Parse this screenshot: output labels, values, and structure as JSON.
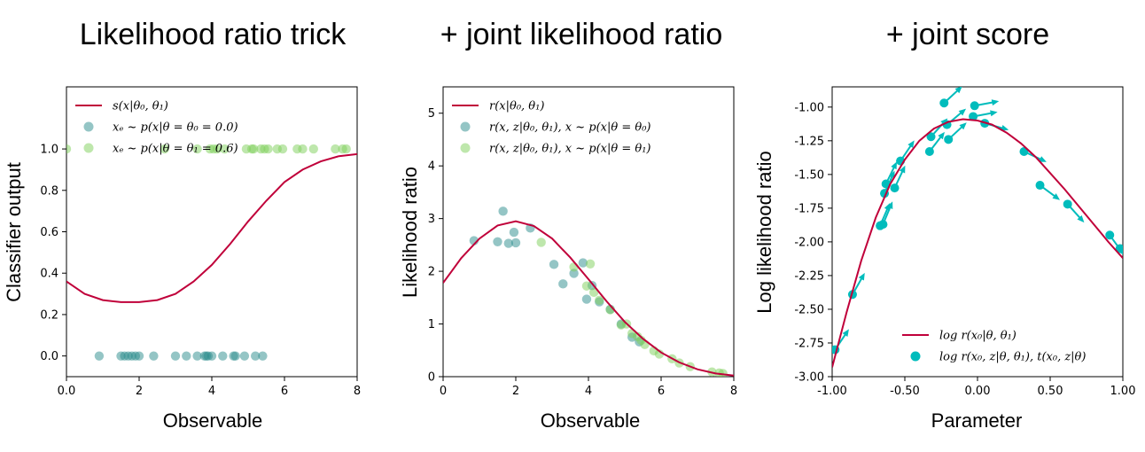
{
  "colors": {
    "curve": "#c0003a",
    "teal": "#2a8c8c",
    "green": "#7ed05a",
    "cyan": "#00bcbc"
  },
  "chart_data": [
    {
      "id": "p1",
      "type": "scatter",
      "title": "Likelihood ratio trick",
      "xlabel": "Observable",
      "ylabel": "Classifier output",
      "xlim": [
        0,
        8
      ],
      "ylim": [
        -0.1,
        1.3
      ],
      "xticks": [
        0,
        2,
        4,
        6,
        8
      ],
      "yticks": [
        0.0,
        0.2,
        0.4,
        0.6,
        0.8,
        1.0
      ],
      "grid": false,
      "legend_position": "top-left",
      "legend": [
        "s(x|θ₀, θ₁)",
        "xₑ ~ p(x|θ = θ₀ = 0.0)",
        "xₑ ~ p(x|θ = θ₁ = 0.6)"
      ],
      "curve": {
        "x": [
          0,
          0.5,
          1,
          1.5,
          2,
          2.5,
          3,
          3.5,
          4,
          4.5,
          5,
          5.5,
          6,
          6.5,
          7,
          7.5,
          8
        ],
        "y": [
          0.36,
          0.3,
          0.27,
          0.26,
          0.26,
          0.27,
          0.3,
          0.36,
          0.44,
          0.54,
          0.65,
          0.75,
          0.84,
          0.9,
          0.94,
          0.965,
          0.975
        ]
      },
      "series": [
        {
          "color": "teal",
          "x": [
            0.9,
            1.5,
            1.6,
            1.7,
            1.8,
            1.9,
            2.0,
            2.4,
            3.0,
            3.3,
            3.6,
            3.8,
            3.85,
            3.9,
            4.0,
            4.3,
            4.6,
            4.65,
            4.9,
            5.2,
            5.4
          ],
          "y": [
            0,
            0,
            0,
            0,
            0,
            0,
            0,
            0,
            0,
            0,
            0,
            0,
            0,
            0,
            0,
            0,
            0,
            0,
            0,
            0,
            0
          ]
        },
        {
          "color": "green",
          "x": [
            0.0,
            2.7,
            3.6,
            3.95,
            4.05,
            4.15,
            4.35,
            4.95,
            5.1,
            5.15,
            5.35,
            5.45,
            5.55,
            5.8,
            5.95,
            6.35,
            6.5,
            6.8,
            7.4,
            7.6,
            7.7
          ],
          "y": [
            1,
            1,
            1,
            1,
            1,
            1,
            1,
            1,
            1,
            1,
            1,
            1,
            1,
            1,
            1,
            1,
            1,
            1,
            1,
            1,
            1
          ]
        }
      ]
    },
    {
      "id": "p2",
      "type": "scatter",
      "title": "+ joint likelihood ratio",
      "xlabel": "Observable",
      "ylabel": "Likelihood ratio",
      "xlim": [
        0,
        8
      ],
      "ylim": [
        0,
        5.5
      ],
      "xticks": [
        0,
        2,
        4,
        6,
        8
      ],
      "yticks": [
        0,
        1,
        2,
        3,
        4,
        5
      ],
      "grid": false,
      "legend_position": "top-left",
      "legend": [
        "r(x|θ₀, θ₁)",
        "r(x, z|θ₀, θ₁), x ~ p(x|θ = θ₀)",
        "r(x, z|θ₀, θ₁), x ~ p(x|θ = θ₁)"
      ],
      "curve": {
        "x": [
          0,
          0.5,
          1,
          1.5,
          2,
          2.5,
          3,
          3.5,
          4,
          4.5,
          5,
          5.5,
          6,
          6.5,
          7,
          7.5,
          8
        ],
        "y": [
          1.78,
          2.25,
          2.62,
          2.87,
          2.95,
          2.86,
          2.62,
          2.26,
          1.85,
          1.43,
          1.04,
          0.72,
          0.46,
          0.27,
          0.14,
          0.06,
          0.02
        ]
      },
      "series": [
        {
          "color": "teal",
          "x": [
            0.85,
            1.5,
            1.65,
            1.8,
            1.95,
            2.0,
            2.4,
            3.05,
            3.3,
            3.6,
            3.85,
            3.95,
            4.1,
            4.3,
            4.6,
            4.9,
            5.2,
            5.4
          ],
          "y": [
            2.58,
            2.56,
            3.14,
            2.53,
            2.74,
            2.54,
            2.82,
            2.13,
            1.76,
            1.96,
            2.16,
            1.47,
            1.73,
            1.42,
            1.28,
            1.0,
            0.75,
            0.66
          ]
        },
        {
          "color": "green",
          "x": [
            2.7,
            3.6,
            3.95,
            4.05,
            4.15,
            4.3,
            4.6,
            4.9,
            5.05,
            5.2,
            5.35,
            5.45,
            5.55,
            5.8,
            5.95,
            6.3,
            6.5,
            6.8,
            7.4,
            7.6,
            7.7
          ],
          "y": [
            2.55,
            2.08,
            1.72,
            2.14,
            1.6,
            1.45,
            1.27,
            0.98,
            1.0,
            0.82,
            0.76,
            0.69,
            0.61,
            0.49,
            0.43,
            0.34,
            0.26,
            0.19,
            0.09,
            0.07,
            0.06
          ]
        }
      ]
    },
    {
      "id": "p3",
      "type": "scatter",
      "title": "+ joint score",
      "xlabel": "Parameter",
      "ylabel": "Log likelihood ratio",
      "xlim": [
        -1.0,
        1.0
      ],
      "ylim": [
        -3.0,
        -0.85
      ],
      "xticks": [
        -1.0,
        -0.5,
        0.0,
        0.5,
        1.0
      ],
      "yticks": [
        -3.0,
        -2.75,
        -2.5,
        -2.25,
        -2.0,
        -1.75,
        -1.5,
        -1.25,
        -1.0
      ],
      "grid": false,
      "legend_position": "bottom-center",
      "legend": [
        "log r(x₀|θ, θ₁)",
        "log r(x₀, z|θ, θ₁), t(x₀, z|θ)"
      ],
      "curve": {
        "x": [
          -1.0,
          -0.9,
          -0.8,
          -0.7,
          -0.6,
          -0.5,
          -0.4,
          -0.3,
          -0.2,
          -0.1,
          0.0,
          0.1,
          0.2,
          0.3,
          0.4,
          0.5,
          0.6,
          0.7,
          0.8,
          0.9,
          1.0
        ],
        "y": [
          -2.93,
          -2.52,
          -2.14,
          -1.82,
          -1.57,
          -1.39,
          -1.25,
          -1.16,
          -1.11,
          -1.09,
          -1.1,
          -1.13,
          -1.19,
          -1.27,
          -1.37,
          -1.49,
          -1.61,
          -1.74,
          -1.87,
          -2.0,
          -2.12
        ]
      },
      "series": [
        {
          "color": "cyan",
          "x": [
            -0.98,
            -0.86,
            -0.67,
            -0.65,
            -0.64,
            -0.63,
            -0.57,
            -0.53,
            -0.33,
            -0.32,
            -0.23,
            -0.21,
            -0.2,
            -0.03,
            -0.02,
            0.05,
            0.32,
            0.43,
            0.62,
            0.91,
            0.98
          ],
          "y": [
            -2.8,
            -2.39,
            -1.88,
            -1.87,
            -1.64,
            -1.57,
            -1.6,
            -1.4,
            -1.33,
            -1.22,
            -0.97,
            -1.13,
            -1.24,
            -1.07,
            -0.99,
            -1.12,
            -1.33,
            -1.58,
            -1.72,
            -1.95,
            -2.05
          ],
          "score": [
            1.6,
            1.9,
            2.5,
            2.6,
            2.4,
            2.2,
            2.3,
            1.6,
            1.4,
            1.2,
            1.0,
            0.9,
            1.0,
            0.2,
            0.2,
            -0.3,
            -0.5,
            -0.8,
            -1.2,
            -1.5,
            -1.7
          ]
        }
      ]
    }
  ]
}
